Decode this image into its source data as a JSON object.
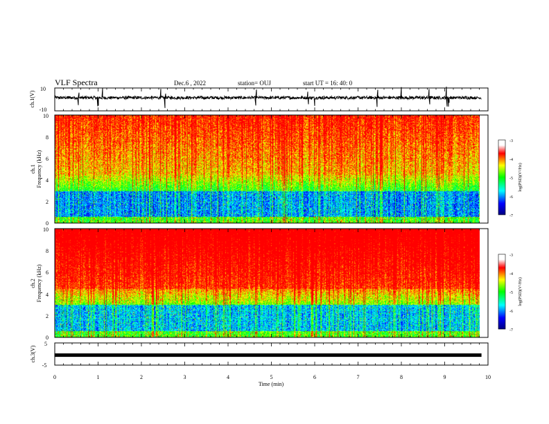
{
  "header": {
    "title": "VLF Spectra",
    "date": "Dec.6  , 2022",
    "station": "station= OUJ",
    "start_ut": "start  UT  =   16: 40: 0"
  },
  "chart_data": [
    {
      "id": "ch1_waveform",
      "type": "line",
      "ylabel": "ch.1(V)",
      "ylim": [
        -10,
        10
      ],
      "yticks": [
        "10",
        "-10"
      ],
      "x_range_min": [
        0,
        9.85
      ],
      "baseline_v": 1.5,
      "description": "broadband waveform trace with impulsive spikes"
    },
    {
      "id": "ch1_spectrogram",
      "type": "heatmap",
      "ylabel_line1": "ch.1",
      "ylabel_line2": "Frequency  (kHz)",
      "ylim_khz": [
        0,
        10
      ],
      "yticks": [
        "0",
        "2",
        "4",
        "6",
        "8",
        "10"
      ],
      "x_range_min": [
        0,
        9.85
      ],
      "colorbar": {
        "label": "log(PSD)(V²/Hz)",
        "range": [
          -7,
          -3
        ],
        "ticks": [
          "-3",
          "-4",
          "-5",
          "-6",
          "-7"
        ]
      }
    },
    {
      "id": "ch2_spectrogram",
      "type": "heatmap",
      "ylabel_line1": "ch.2",
      "ylabel_line2": "Frequency  (kHz)",
      "ylim_khz": [
        0,
        10
      ],
      "yticks": [
        "0",
        "2",
        "4",
        "6",
        "8",
        "10"
      ],
      "x_range_min": [
        0,
        9.85
      ],
      "colorbar": {
        "label": "log(PSD)(V²/Hz)",
        "range": [
          -7,
          -3
        ],
        "ticks": [
          "-3",
          "-4",
          "-5",
          "-6",
          "-7"
        ]
      }
    },
    {
      "id": "ch3_waveform",
      "type": "line",
      "ylabel": "ch.3(V)",
      "ylim": [
        -5,
        5
      ],
      "yticks": [
        "5",
        "-5"
      ],
      "x_range_min": [
        0,
        9.85
      ],
      "baseline_v": -0.5
    }
  ],
  "x_axis": {
    "label": "Time  (min)",
    "range": [
      0,
      10
    ],
    "ticks": [
      "0",
      "1",
      "2",
      "3",
      "4",
      "5",
      "6",
      "7",
      "8",
      "9",
      "10"
    ]
  }
}
